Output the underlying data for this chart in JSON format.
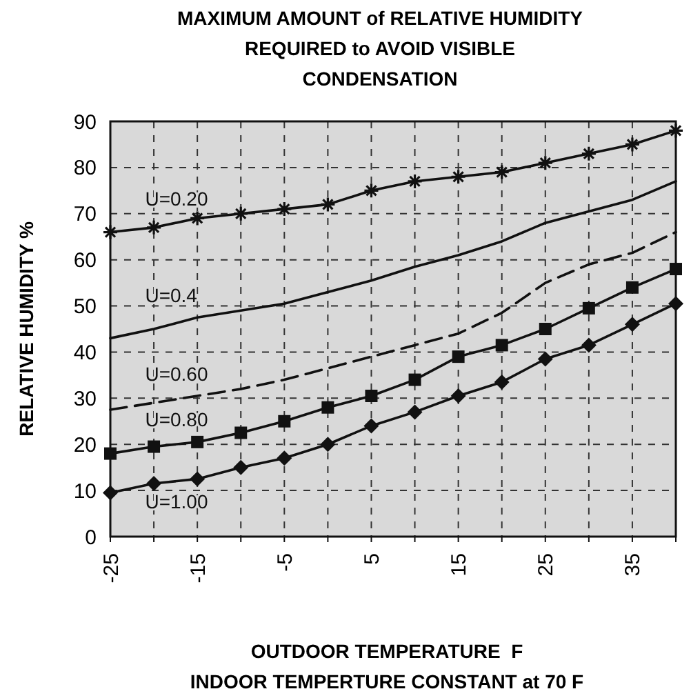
{
  "chart_data": {
    "type": "line",
    "title": "MAXIMUM AMOUNT of RELATIVE HUMIDITY REQUIRED to AVOID VISIBLE CONDENSATION",
    "xlabel": "OUTDOOR TEMPERATURE  F",
    "ylabel": "RELATIVE HUMIDITY %",
    "annotations": [
      "INDOOR TEMPERTURE CONSTANT at 70 F"
    ],
    "x": [
      -25,
      -20,
      -15,
      -10,
      -5,
      0,
      5,
      10,
      15,
      20,
      25,
      30,
      35,
      40
    ],
    "xlim": [
      -25,
      40
    ],
    "xticks": [
      -25,
      {
        "value": -20,
        "label": null
      },
      -15,
      {
        "value": -10,
        "label": null
      },
      -5,
      {
        "value": 0,
        "label": null
      },
      5,
      {
        "value": 10,
        "label": null
      },
      15,
      {
        "value": 20,
        "label": null
      },
      25,
      {
        "value": 30,
        "label": null
      },
      35,
      {
        "value": 40,
        "label": null
      }
    ],
    "ylim": [
      0,
      90
    ],
    "yticks": [
      0,
      10,
      20,
      30,
      40,
      50,
      60,
      70,
      80,
      90
    ],
    "grid": true,
    "series": [
      {
        "name": "U=0.20",
        "color": "#111111",
        "marker": "cross",
        "line_style": "solid",
        "values": [
          66,
          67,
          69,
          70,
          71,
          72,
          75,
          77,
          78,
          79,
          81,
          83,
          85,
          88
        ]
      },
      {
        "name": "U=0.4",
        "color": "#111111",
        "marker": "none",
        "line_style": "solid",
        "values": [
          43,
          45,
          47.5,
          49,
          50.5,
          53,
          55.5,
          58.5,
          61,
          64,
          68,
          70.5,
          73,
          77
        ]
      },
      {
        "name": "U=0.60",
        "color": "#111111",
        "marker": "none",
        "line_style": "dashed",
        "values": [
          27.5,
          29,
          30.5,
          32,
          34,
          36.5,
          39,
          41.5,
          44,
          48.5,
          55,
          59,
          61.5,
          66
        ]
      },
      {
        "name": "U=0.80",
        "color": "#111111",
        "marker": "square",
        "line_style": "solid",
        "values": [
          18,
          19.5,
          20.5,
          22.5,
          25,
          28,
          30.5,
          34,
          39,
          41.5,
          45,
          49.5,
          54,
          58
        ]
      },
      {
        "name": "U=1.00",
        "color": "#111111",
        "marker": "diamond",
        "line_style": "solid",
        "values": [
          9.5,
          11.5,
          12.5,
          15,
          17,
          20,
          24,
          27,
          30.5,
          33.5,
          38.5,
          41.5,
          46,
          50.5
        ]
      }
    ]
  }
}
